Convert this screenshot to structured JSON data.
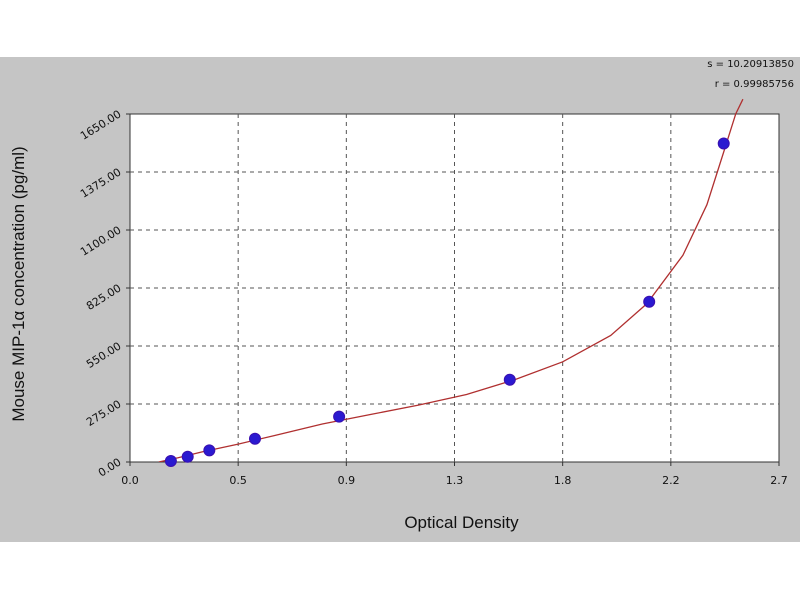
{
  "stats": {
    "s_line": "s = 10.20913850",
    "r_line": "r = 0.99985756"
  },
  "chart_data": {
    "type": "scatter",
    "title": "",
    "xlabel": "Optical Density",
    "ylabel": "Mouse MIP-1α concentration (pg/ml)",
    "xlim": [
      0.0,
      2.7
    ],
    "ylim": [
      0.0,
      1650.0
    ],
    "grid": true,
    "x_tick_labels": [
      "0.0",
      "0.5",
      "0.9",
      "1.3",
      "1.8",
      "2.2",
      "2.7"
    ],
    "y_tick_labels": [
      "0.00",
      "275.00",
      "550.00",
      "825.00",
      "1100.00",
      "1375.00",
      "1650.00"
    ],
    "series": [
      {
        "points": [
          {
            "x": 0.17,
            "y": 5
          },
          {
            "x": 0.24,
            "y": 25
          },
          {
            "x": 0.33,
            "y": 55
          },
          {
            "x": 0.52,
            "y": 110
          },
          {
            "x": 0.87,
            "y": 215
          },
          {
            "x": 1.58,
            "y": 390
          },
          {
            "x": 2.16,
            "y": 760
          },
          {
            "x": 2.47,
            "y": 1510
          }
        ]
      }
    ],
    "fit_curve": {
      "points": [
        {
          "x": 0.12,
          "y": 0
        },
        {
          "x": 0.2,
          "y": 20
        },
        {
          "x": 0.3,
          "y": 48
        },
        {
          "x": 0.45,
          "y": 85
        },
        {
          "x": 0.6,
          "y": 125
        },
        {
          "x": 0.8,
          "y": 180
        },
        {
          "x": 1.0,
          "y": 225
        },
        {
          "x": 1.2,
          "y": 270
        },
        {
          "x": 1.4,
          "y": 320
        },
        {
          "x": 1.6,
          "y": 390
        },
        {
          "x": 1.8,
          "y": 475
        },
        {
          "x": 2.0,
          "y": 600
        },
        {
          "x": 2.15,
          "y": 750
        },
        {
          "x": 2.3,
          "y": 980
        },
        {
          "x": 2.4,
          "y": 1220
        },
        {
          "x": 2.47,
          "y": 1470
        },
        {
          "x": 2.52,
          "y": 1650
        },
        {
          "x": 2.55,
          "y": 1720
        }
      ]
    },
    "colors": {
      "marker_fill": "#2a1ad0",
      "marker_stroke": "#3a0fb0",
      "curve": "#b03030",
      "grid": "#555555",
      "panel": "#c5c5c5",
      "plot_bg": "#ffffff"
    }
  }
}
